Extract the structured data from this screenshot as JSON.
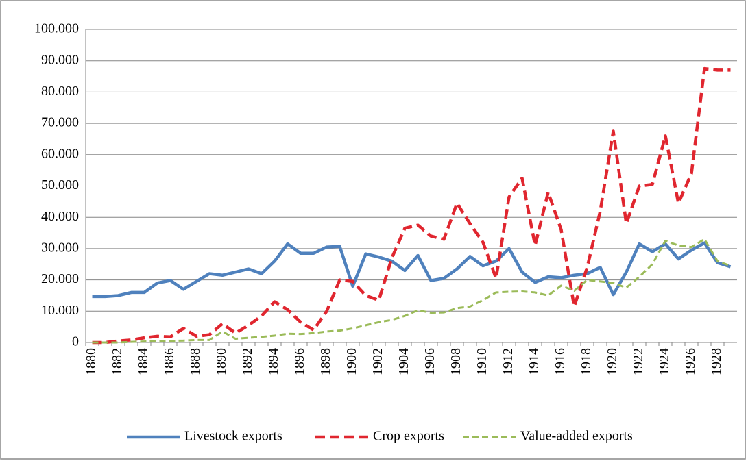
{
  "chart_data": {
    "type": "line",
    "categories": [
      "1880",
      null,
      "1882",
      null,
      "1884",
      null,
      "1886",
      null,
      "1888",
      null,
      "1890",
      null,
      "1892",
      null,
      "1894",
      null,
      "1896",
      null,
      "1898",
      null,
      "1900",
      null,
      "1902",
      null,
      "1904",
      null,
      "1906",
      null,
      "1908",
      null,
      "1910",
      null,
      "1912",
      null,
      "1914",
      null,
      "1916",
      null,
      "1918",
      null,
      "1920",
      null,
      "1922",
      null,
      "1924",
      null,
      "1926",
      null,
      "1928",
      null
    ],
    "series": [
      {
        "name": "Livestock exports",
        "color": "#4f81bd",
        "dash": false,
        "values": [
          14700,
          14700,
          15000,
          16000,
          16000,
          19000,
          19800,
          17000,
          19500,
          22000,
          21500,
          22500,
          23500,
          22000,
          26000,
          31500,
          28500,
          28500,
          30500,
          30700,
          18000,
          28300,
          27300,
          26000,
          23000,
          27800,
          19800,
          20500,
          23500,
          27500,
          24500,
          26000,
          30000,
          22500,
          19200,
          21000,
          20700,
          21500,
          22000,
          24000,
          15300,
          22500,
          31500,
          29000,
          31500,
          26700,
          29500,
          31800,
          25500,
          24200
        ]
      },
      {
        "name": "Crop exports",
        "color": "#e0262f",
        "dash": true,
        "values": [
          0,
          0,
          500,
          800,
          1500,
          2000,
          1800,
          4500,
          2000,
          2500,
          6000,
          3000,
          5500,
          8500,
          13000,
          10500,
          6500,
          4000,
          10000,
          20000,
          19500,
          15000,
          13500,
          27000,
          36500,
          37500,
          34000,
          33000,
          44500,
          38000,
          32000,
          20500,
          46500,
          52500,
          31000,
          48000,
          36000,
          11500,
          24000,
          42000,
          67500,
          38000,
          50000,
          50500,
          66000,
          44500,
          54000,
          87500,
          87000,
          87000
        ]
      },
      {
        "name": "Value-added exports",
        "color": "#9bbb59",
        "dash": true,
        "values": [
          0,
          0,
          0,
          200,
          300,
          400,
          500,
          600,
          800,
          800,
          3500,
          1200,
          1500,
          1800,
          2200,
          2800,
          2700,
          3000,
          3500,
          3800,
          4500,
          5500,
          6500,
          7200,
          8500,
          10300,
          9500,
          9600,
          11000,
          11500,
          13500,
          16000,
          16200,
          16300,
          16000,
          15000,
          18200,
          16500,
          20000,
          19500,
          19000,
          17500,
          21000,
          25000,
          32500,
          31000,
          30500,
          33000,
          26000,
          24500
        ]
      }
    ],
    "ylim": [
      0,
      100000
    ],
    "yticks": [
      0,
      {
        "value": 10000,
        "label": "10.000"
      },
      {
        "value": 20000,
        "label": "20.000"
      },
      {
        "value": 30000,
        "label": "30.000"
      },
      {
        "value": 40000,
        "label": "40.000"
      },
      {
        "value": 50000,
        "label": "50.000"
      },
      {
        "value": 60000,
        "label": "60.000"
      },
      {
        "value": 70000,
        "label": "70.000"
      },
      {
        "value": 80000,
        "label": "80.000"
      },
      {
        "value": 90000,
        "label": "90.000"
      },
      {
        "value": 100000,
        "label": "100.000"
      }
    ],
    "grid": true,
    "legend": "bottom"
  }
}
